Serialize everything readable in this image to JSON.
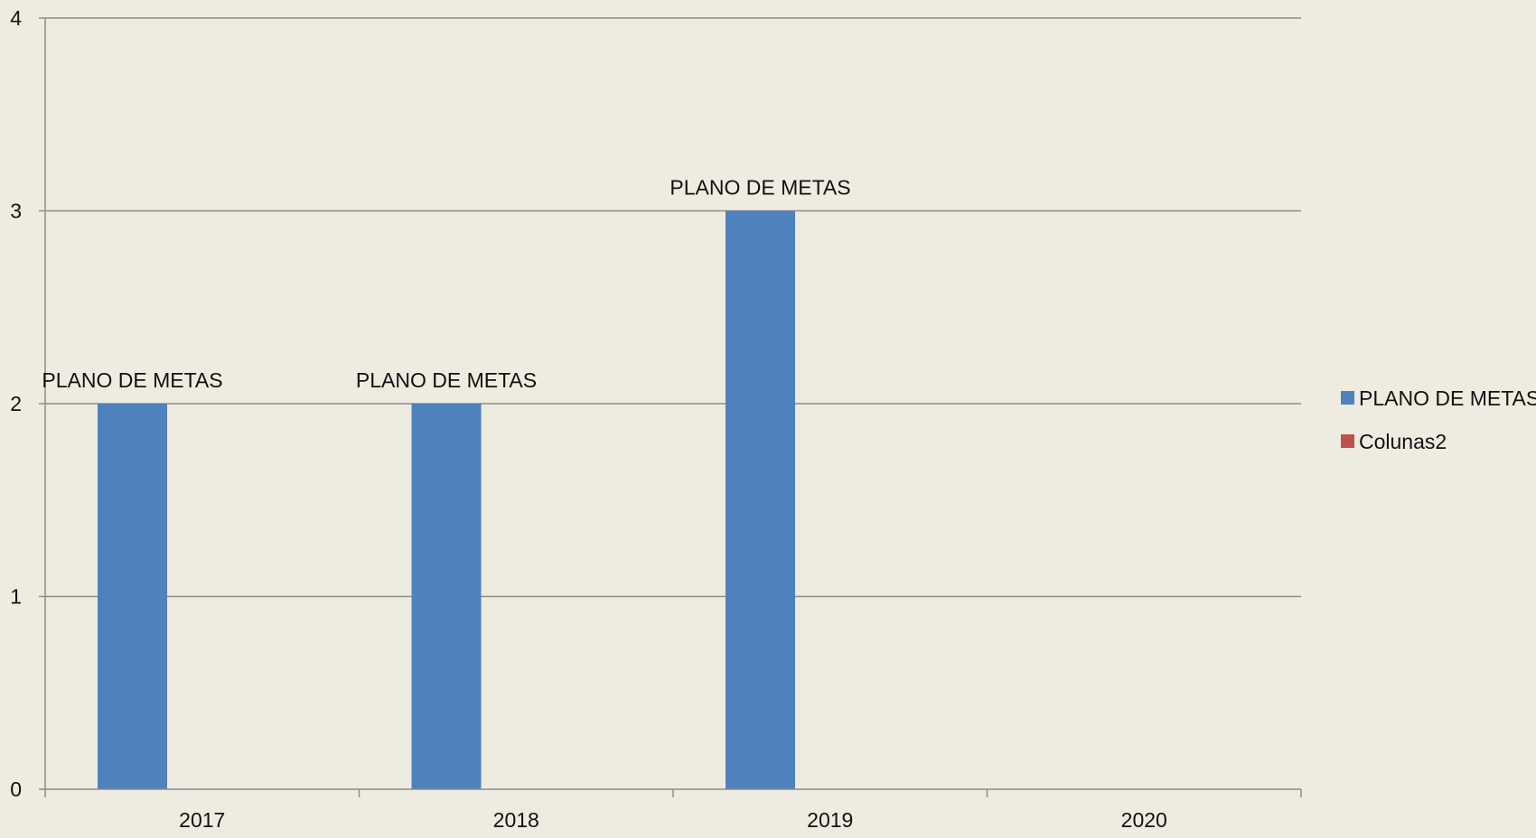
{
  "chart_data": {
    "type": "bar",
    "title": "",
    "xlabel": "",
    "ylabel": "",
    "categories": [
      "2017",
      "2018",
      "2019",
      "2020"
    ],
    "ylim": [
      0,
      4
    ],
    "yticks": [
      "0",
      "1",
      "2",
      "3",
      "4"
    ],
    "grid": true,
    "legend_position": "right",
    "series": [
      {
        "name": "PLANO DE METAS",
        "color": "#4F81BD",
        "values": [
          2,
          2,
          3,
          null
        ],
        "data_labels": [
          "PLANO DE  METAS",
          "PLANO DE METAS",
          "PLANO DE METAS",
          ""
        ]
      },
      {
        "name": "Colunas2",
        "color": "#C0504D",
        "values": [
          null,
          null,
          null,
          null
        ],
        "data_labels": [
          "",
          "",
          "",
          ""
        ]
      }
    ]
  }
}
